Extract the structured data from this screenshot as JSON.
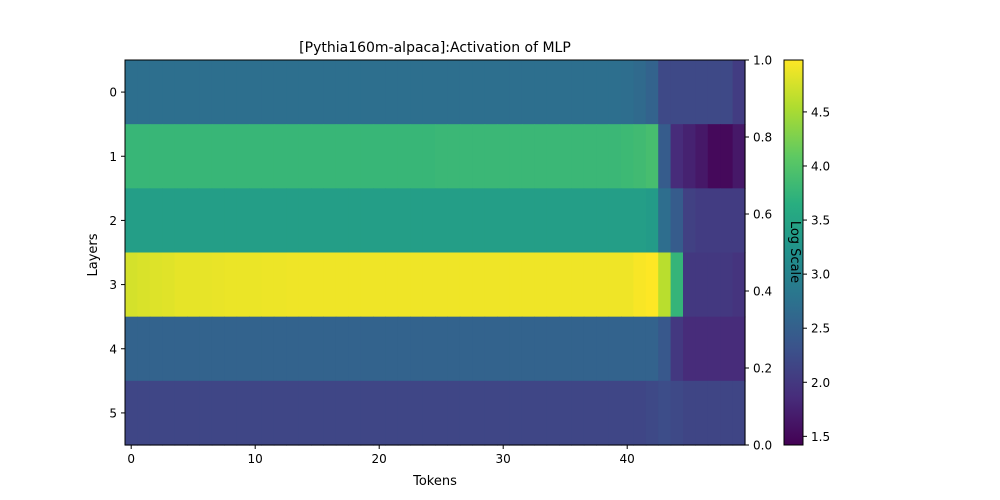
{
  "chart_data": {
    "type": "heatmap",
    "title": "[Pythia160m-alpaca]:Activation of MLP",
    "xlabel": "Tokens",
    "ylabel": "Layers",
    "xlim": [
      -0.5,
      49.5
    ],
    "ylim": [
      5.5,
      -0.5
    ],
    "x_ticks": [
      0,
      10,
      20,
      30,
      40
    ],
    "y_ticks": [
      0,
      1,
      2,
      3,
      4,
      5
    ],
    "right_axis": {
      "label": "",
      "range": [
        0.0,
        1.0
      ],
      "ticks": [
        "0.0",
        "0.2",
        "0.4",
        "0.6",
        "0.8",
        "1.0"
      ]
    },
    "colorbar": {
      "label": "Log Scale",
      "colormap": "viridis",
      "range": [
        1.42,
        4.98
      ],
      "ticks": [
        "1.5",
        "2.0",
        "2.5",
        "3.0",
        "3.5",
        "4.0",
        "4.5"
      ]
    },
    "rows": [
      {
        "layer": 0,
        "values": [
          2.72,
          2.72,
          2.72,
          2.72,
          2.72,
          2.72,
          2.72,
          2.72,
          2.72,
          2.72,
          2.72,
          2.72,
          2.72,
          2.72,
          2.72,
          2.72,
          2.72,
          2.72,
          2.72,
          2.72,
          2.72,
          2.72,
          2.72,
          2.72,
          2.72,
          2.72,
          2.72,
          2.72,
          2.72,
          2.72,
          2.72,
          2.72,
          2.72,
          2.72,
          2.72,
          2.72,
          2.72,
          2.72,
          2.72,
          2.72,
          2.7,
          2.65,
          2.55,
          2.2,
          2.2,
          2.2,
          2.2,
          2.2,
          2.2,
          2.05
        ]
      },
      {
        "layer": 1,
        "values": [
          3.78,
          3.78,
          3.78,
          3.78,
          3.78,
          3.78,
          3.78,
          3.78,
          3.78,
          3.78,
          3.78,
          3.78,
          3.78,
          3.78,
          3.78,
          3.78,
          3.78,
          3.78,
          3.78,
          3.78,
          3.78,
          3.78,
          3.78,
          3.78,
          3.78,
          3.8,
          3.8,
          3.8,
          3.8,
          3.8,
          3.8,
          3.8,
          3.8,
          3.8,
          3.8,
          3.8,
          3.8,
          3.8,
          3.8,
          3.8,
          3.82,
          3.85,
          3.9,
          2.45,
          1.85,
          1.75,
          1.65,
          1.5,
          1.5,
          1.65
        ]
      },
      {
        "layer": 2,
        "values": [
          3.4,
          3.4,
          3.4,
          3.4,
          3.4,
          3.4,
          3.4,
          3.4,
          3.4,
          3.4,
          3.4,
          3.4,
          3.4,
          3.4,
          3.4,
          3.4,
          3.4,
          3.4,
          3.4,
          3.4,
          3.4,
          3.4,
          3.4,
          3.4,
          3.4,
          3.4,
          3.4,
          3.4,
          3.4,
          3.4,
          3.4,
          3.4,
          3.4,
          3.4,
          3.4,
          3.4,
          3.4,
          3.4,
          3.4,
          3.4,
          3.4,
          3.4,
          3.35,
          2.7,
          2.45,
          2.1,
          2.05,
          2.05,
          2.05,
          2.05
        ]
      },
      {
        "layer": 3,
        "values": [
          4.75,
          4.78,
          4.8,
          4.82,
          4.85,
          4.85,
          4.86,
          4.87,
          4.88,
          4.88,
          4.88,
          4.89,
          4.89,
          4.9,
          4.9,
          4.9,
          4.9,
          4.9,
          4.9,
          4.9,
          4.9,
          4.9,
          4.9,
          4.9,
          4.9,
          4.9,
          4.9,
          4.9,
          4.9,
          4.9,
          4.9,
          4.9,
          4.9,
          4.9,
          4.9,
          4.9,
          4.9,
          4.9,
          4.9,
          4.9,
          4.9,
          4.95,
          4.98,
          4.6,
          3.75,
          2.0,
          2.0,
          2.0,
          2.0,
          1.95
        ]
      },
      {
        "layer": 4,
        "values": [
          2.55,
          2.55,
          2.55,
          2.55,
          2.55,
          2.55,
          2.55,
          2.55,
          2.55,
          2.55,
          2.55,
          2.55,
          2.55,
          2.55,
          2.55,
          2.55,
          2.55,
          2.55,
          2.55,
          2.55,
          2.55,
          2.55,
          2.55,
          2.55,
          2.55,
          2.55,
          2.55,
          2.55,
          2.55,
          2.55,
          2.55,
          2.55,
          2.55,
          2.55,
          2.55,
          2.55,
          2.55,
          2.55,
          2.55,
          2.55,
          2.55,
          2.55,
          2.55,
          2.4,
          2.0,
          1.85,
          1.85,
          1.85,
          1.85,
          1.85
        ]
      },
      {
        "layer": 5,
        "values": [
          2.17,
          2.17,
          2.17,
          2.17,
          2.17,
          2.17,
          2.17,
          2.17,
          2.17,
          2.17,
          2.17,
          2.17,
          2.17,
          2.17,
          2.17,
          2.17,
          2.17,
          2.17,
          2.17,
          2.17,
          2.17,
          2.17,
          2.17,
          2.17,
          2.17,
          2.17,
          2.17,
          2.17,
          2.17,
          2.17,
          2.17,
          2.17,
          2.17,
          2.17,
          2.17,
          2.17,
          2.17,
          2.17,
          2.17,
          2.17,
          2.17,
          2.17,
          2.2,
          2.25,
          2.2,
          2.15,
          2.15,
          2.15,
          2.15,
          2.15
        ]
      }
    ]
  }
}
